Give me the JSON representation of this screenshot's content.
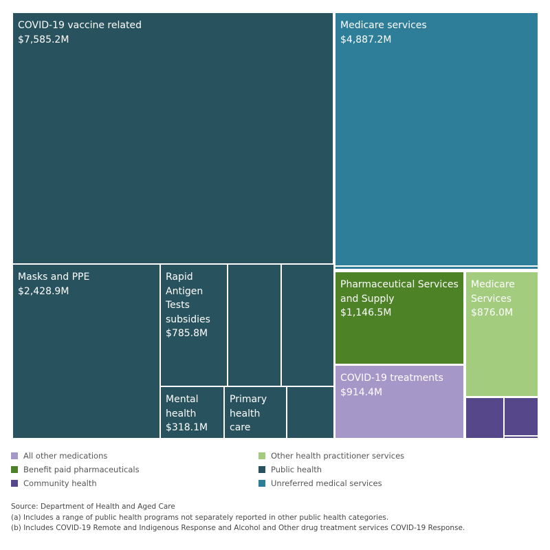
{
  "chart_data": {
    "type": "treemap",
    "title": "",
    "colors": {
      "Public health": "#29525f",
      "Unreferred medical services": "#2e7e99",
      "Benefit paid pharmaceuticals": "#4d8226",
      "Other health practitioner services": "#a3cc7f",
      "All other medications": "#a697c9",
      "Community health": "#56468a"
    },
    "tiles": [
      {
        "name": "COVID-19 vaccine related",
        "value_label": "$7,585.2M",
        "value": 7585.2,
        "category": "Public health"
      },
      {
        "name": "Masks and PPE",
        "value_label": "$2,428.9M",
        "value": 2428.9,
        "category": "Public health"
      },
      {
        "name": "Rapid Antigen Tests subsidies",
        "value_label": "$785.8M",
        "value": 785.8,
        "category": "Public health"
      },
      {
        "name": "",
        "value_label": "",
        "category": "Public health"
      },
      {
        "name": "",
        "value_label": "",
        "category": "Public health"
      },
      {
        "name": "Mental health",
        "value_label": "$318.1M",
        "value": 318.1,
        "category": "Public health"
      },
      {
        "name": "Primary health care",
        "value_label": "",
        "category": "Public health"
      },
      {
        "name": "",
        "value_label": "",
        "category": "Public health"
      },
      {
        "name": "Medicare services",
        "value_label": "$4,887.2M",
        "value": 4887.2,
        "category": "Unreferred medical services"
      },
      {
        "name": "",
        "value_label": "",
        "category": "Unreferred medical services"
      },
      {
        "name": "Pharmaceutical Services and Supply",
        "value_label": "$1,146.5M",
        "value": 1146.5,
        "category": "Benefit paid pharmaceuticals"
      },
      {
        "name": "Medicare Services",
        "value_label": "$876.0M",
        "value": 876.0,
        "category": "Other health practitioner services"
      },
      {
        "name": "COVID-19 treatments",
        "value_label": "$914.4M",
        "value": 914.4,
        "category": "All other medications"
      },
      {
        "name": "",
        "value_label": "",
        "category": "Community health"
      },
      {
        "name": "",
        "value_label": "",
        "category": "Community health"
      },
      {
        "name": "",
        "value_label": "",
        "category": "Community health"
      }
    ],
    "legend": [
      {
        "label": "All other medications",
        "color": "#a697c9"
      },
      {
        "label": "Other health practitioner services",
        "color": "#a3cc7f"
      },
      {
        "label": "Benefit paid pharmaceuticals",
        "color": "#4d8226"
      },
      {
        "label": "Public health",
        "color": "#29525f"
      },
      {
        "label": "Community health",
        "color": "#56468a"
      },
      {
        "label": "Unreferred medical services",
        "color": "#2e7e99"
      }
    ],
    "legend_placement": "bottom",
    "notes": [
      "Source: Department of Health and Aged Care",
      "(a) Includes a range of public health programs not separately reported in other public health categories.",
      "(b) Includes COVID-19 Remote and Indigenous Response and Alcohol and Other drug treatment services COVID-19 Response."
    ]
  }
}
